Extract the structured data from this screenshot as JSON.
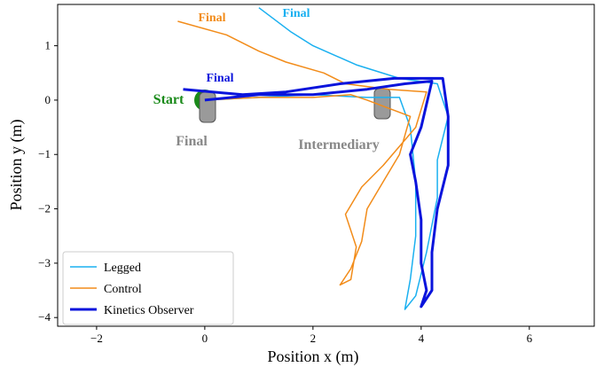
{
  "chart_data": {
    "type": "line",
    "xlabel": "Position x (m)",
    "ylabel": "Position y (m)",
    "xlim": [
      -2.72,
      7.2
    ],
    "ylim": [
      -4.16,
      1.76
    ],
    "xticks": [
      {
        "value": -2,
        "label": "−2"
      },
      0,
      2,
      4,
      6
    ],
    "yticks": [
      {
        "value": -4,
        "label": "−4"
      },
      {
        "value": -3,
        "label": "−3"
      },
      {
        "value": -2,
        "label": "−2"
      },
      {
        "value": -1,
        "label": "−1"
      },
      0,
      1
    ],
    "grid": false,
    "legend": "lower left",
    "annotations": [
      "Start",
      "Final",
      "Final",
      "Final",
      "Final",
      "Intermediary"
    ],
    "series": [
      {
        "name": "Legged",
        "color": "#1ab0f0",
        "line_width": 1.5,
        "x": [
          0,
          1,
          2,
          3,
          3.6,
          3.8,
          3.9,
          3.9,
          3.8,
          3.7,
          3.9,
          4.1,
          4.3,
          4.3,
          4.5,
          4.3,
          3.6,
          2.8,
          2.0,
          1.6,
          1.0
        ],
        "values": [
          0,
          0.05,
          0.1,
          0.05,
          0.05,
          -0.5,
          -1.5,
          -2.5,
          -3.3,
          -3.85,
          -3.6,
          -2.8,
          -1.8,
          -1.1,
          -0.3,
          0.3,
          0.4,
          0.65,
          1.0,
          1.25,
          1.7
        ]
      },
      {
        "name": "Control",
        "color": "#f28c1a",
        "line_width": 1.5,
        "x": [
          0,
          1,
          2,
          2.7,
          3.0,
          3.8,
          3.6,
          3.3,
          3.0,
          2.9,
          2.7,
          2.5,
          2.7,
          2.8,
          2.6,
          2.9,
          3.3,
          3.9,
          4.1,
          3.4,
          2.6,
          2.2,
          1.5,
          1.0,
          0.4,
          -0.5
        ],
        "values": [
          0,
          0.05,
          0.05,
          0.1,
          0,
          -0.3,
          -1.0,
          -1.5,
          -2.0,
          -2.6,
          -3.1,
          -3.4,
          -3.3,
          -2.7,
          -2.1,
          -1.6,
          -1.2,
          -0.5,
          0.15,
          0.2,
          0.3,
          0.5,
          0.7,
          0.9,
          1.2,
          1.45
        ]
      },
      {
        "name": "Kinetics Observer",
        "color": "#0a14dc",
        "line_width": 3,
        "x": [
          0,
          1,
          2,
          3,
          3.7,
          4.2,
          4.0,
          3.8,
          3.9,
          4.0,
          4.0,
          4.1,
          4.0,
          4.2,
          4.2,
          4.3,
          4.5,
          4.5,
          4.4,
          3.5,
          2.5,
          1.5,
          0.7,
          -0.4
        ],
        "values": [
          0,
          0.1,
          0.1,
          0.2,
          0.3,
          0.35,
          -0.5,
          -1.0,
          -1.5,
          -2.2,
          -3.0,
          -3.5,
          -3.8,
          -3.5,
          -2.8,
          -2.0,
          -1.2,
          -0.3,
          0.4,
          0.4,
          0.3,
          0.15,
          0.1,
          0.2
        ]
      }
    ]
  }
}
